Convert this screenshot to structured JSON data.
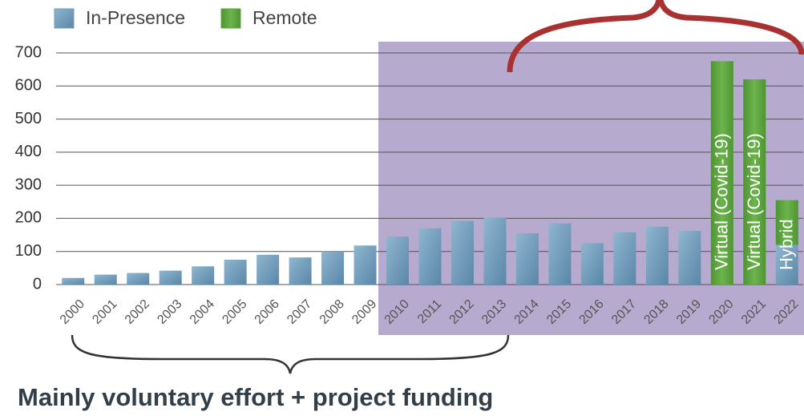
{
  "chart_data": {
    "type": "bar",
    "categories": [
      "2000",
      "2001",
      "2002",
      "2003",
      "2004",
      "2005",
      "2006",
      "2007",
      "2008",
      "2009",
      "2010",
      "2011",
      "2012",
      "2013",
      "2014",
      "2015",
      "2016",
      "2017",
      "2018",
      "2019",
      "2020",
      "2021",
      "2022"
    ],
    "series": [
      {
        "name": "In-Presence",
        "color": "#6f9dbd",
        "values": [
          20,
          30,
          35,
          42,
          55,
          75,
          90,
          82,
          100,
          118,
          145,
          170,
          192,
          202,
          155,
          185,
          125,
          158,
          175,
          162,
          null,
          null,
          120
        ]
      },
      {
        "name": "Remote",
        "color": "#5ea640",
        "values": [
          null,
          null,
          null,
          null,
          null,
          null,
          null,
          null,
          null,
          null,
          null,
          null,
          null,
          null,
          null,
          null,
          null,
          null,
          null,
          null,
          675,
          620,
          135
        ],
        "value_labels": [
          null,
          null,
          null,
          null,
          null,
          null,
          null,
          null,
          null,
          null,
          null,
          null,
          null,
          null,
          null,
          null,
          null,
          null,
          null,
          null,
          "Virtual (Covid-19)",
          "Virtual (Covid-19)",
          "Hybrid"
        ]
      }
    ],
    "stacked": true,
    "ylim": [
      0,
      700
    ],
    "yticks": [
      0,
      100,
      200,
      300,
      400,
      500,
      600,
      700
    ],
    "grid": true,
    "caption": "Mainly voluntary effort + project funding"
  }
}
